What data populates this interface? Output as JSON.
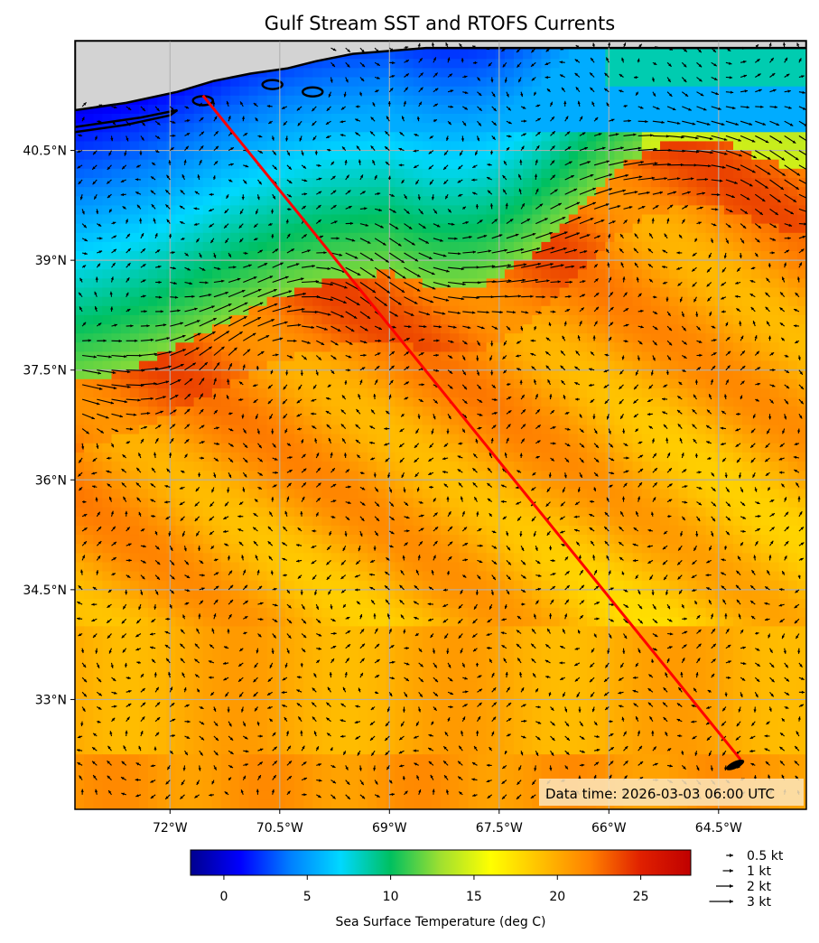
{
  "title": "Gulf Stream SST and RTOFS Currents",
  "data_time": "Data time: 2026-03-03 06:00 UTC",
  "map": {
    "lon_range": [
      -73.3,
      -63.3
    ],
    "lat_range": [
      31.5,
      42.0
    ],
    "lon_ticks": [
      {
        "value": -72,
        "label": "72°W"
      },
      {
        "value": -70.5,
        "label": "70.5°W"
      },
      {
        "value": -69,
        "label": "69°W"
      },
      {
        "value": -67.5,
        "label": "67.5°W"
      },
      {
        "value": -66,
        "label": "66°W"
      },
      {
        "value": -64.5,
        "label": "64.5°W"
      }
    ],
    "lat_ticks": [
      {
        "value": 40.5,
        "label": "40.5°N"
      },
      {
        "value": 39,
        "label": "39°N"
      },
      {
        "value": 37.5,
        "label": "37.5°N"
      },
      {
        "value": 36,
        "label": "36°N"
      },
      {
        "value": 34.5,
        "label": "34.5°N"
      },
      {
        "value": 33,
        "label": "33°N"
      }
    ],
    "grid": true,
    "land_color": "#d3d3d3",
    "route": {
      "color": "#ff0000",
      "start": {
        "lon": -71.55,
        "lat": 41.25
      },
      "end": {
        "lon": -64.2,
        "lat": 32.18
      }
    }
  },
  "colorbar": {
    "label": "Sea Surface Temperature (deg C)",
    "range": [
      -2,
      28
    ],
    "ticks": [
      0,
      5,
      10,
      15,
      20,
      25
    ],
    "colormap": "jet",
    "stops": [
      "#00008f",
      "#0000ff",
      "#0080ff",
      "#00d8ff",
      "#00c060",
      "#a0e030",
      "#ffff00",
      "#ffc000",
      "#ff8000",
      "#e02000",
      "#c00000"
    ]
  },
  "legend": {
    "items": [
      {
        "speed": 0.5,
        "label": "0.5 kt"
      },
      {
        "speed": 1,
        "label": "1 kt"
      },
      {
        "speed": 2,
        "label": "2 kt"
      },
      {
        "speed": 3,
        "label": "3 kt"
      }
    ]
  }
}
